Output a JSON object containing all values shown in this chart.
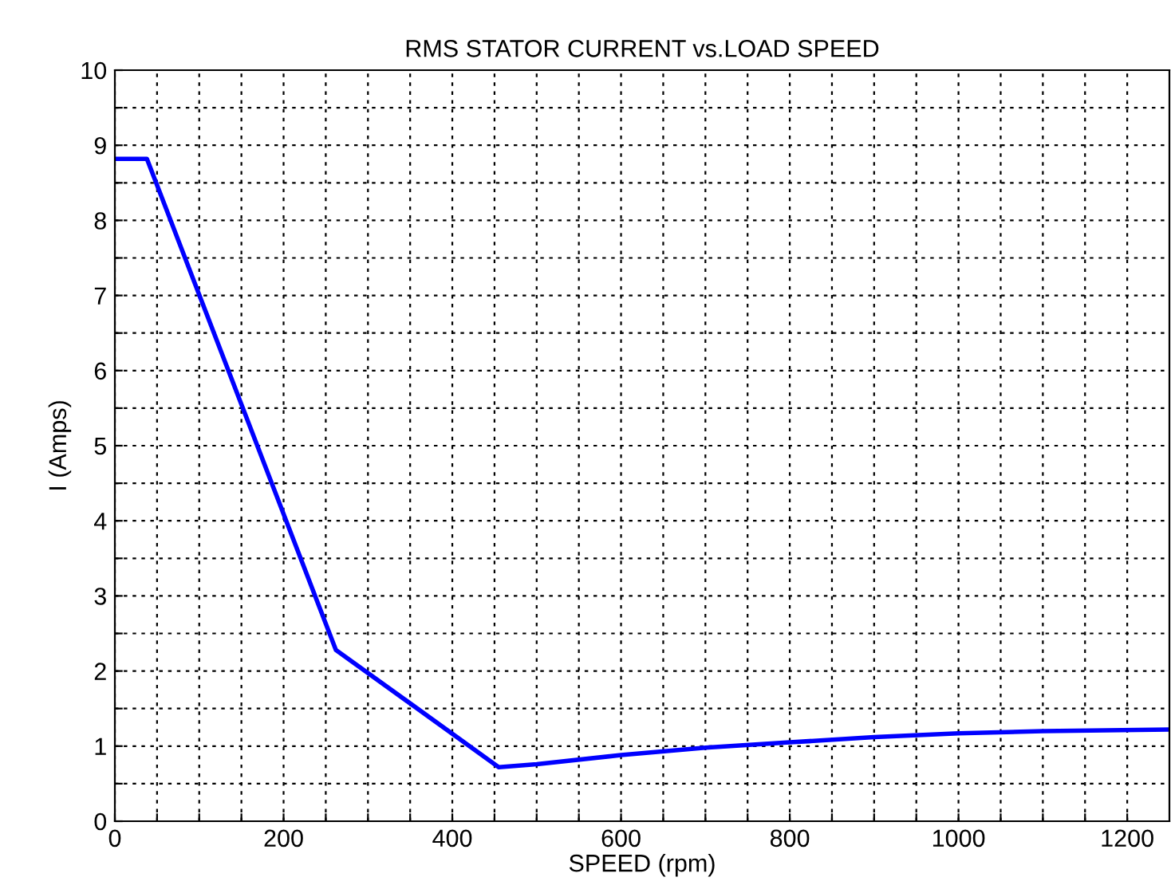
{
  "chart_data": {
    "type": "line",
    "title": "RMS STATOR CURRENT vs.LOAD SPEED",
    "xlabel": "SPEED (rpm)",
    "ylabel": "I (Amps)",
    "x": [
      0,
      38,
      262,
      455,
      500,
      600,
      700,
      800,
      900,
      1000,
      1100,
      1250
    ],
    "series": [
      {
        "color": "#0000ff",
        "values": [
          8.82,
          8.82,
          2.28,
          0.72,
          0.76,
          0.88,
          0.98,
          1.05,
          1.12,
          1.17,
          1.2,
          1.22
        ]
      }
    ],
    "xlim": [
      0,
      1250
    ],
    "xticks": [
      0,
      {
        "value": 50,
        "label": null
      },
      {
        "value": 100,
        "label": null
      },
      {
        "value": 150,
        "label": null
      },
      200,
      {
        "value": 250,
        "label": null
      },
      {
        "value": 300,
        "label": null
      },
      {
        "value": 350,
        "label": null
      },
      400,
      {
        "value": 450,
        "label": null
      },
      {
        "value": 500,
        "label": null
      },
      {
        "value": 550,
        "label": null
      },
      600,
      {
        "value": 650,
        "label": null
      },
      {
        "value": 700,
        "label": null
      },
      {
        "value": 750,
        "label": null
      },
      800,
      {
        "value": 850,
        "label": null
      },
      {
        "value": 900,
        "label": null
      },
      {
        "value": 950,
        "label": null
      },
      1000,
      {
        "value": 1050,
        "label": null
      },
      {
        "value": 1100,
        "label": null
      },
      {
        "value": 1150,
        "label": null
      },
      1200
    ],
    "ylim": [
      0,
      10
    ],
    "yticks": [
      0,
      {
        "value": 0.5,
        "label": null
      },
      1,
      {
        "value": 1.5,
        "label": null
      },
      2,
      {
        "value": 2.5,
        "label": null
      },
      3,
      {
        "value": 3.5,
        "label": null
      },
      4,
      {
        "value": 4.5,
        "label": null
      },
      5,
      {
        "value": 5.5,
        "label": null
      },
      6,
      {
        "value": 6.5,
        "label": null
      },
      7,
      {
        "value": 7.5,
        "label": null
      },
      8,
      {
        "value": 8.5,
        "label": null
      },
      9,
      {
        "value": 9.5,
        "label": null
      },
      10
    ],
    "grid": true,
    "line_style": "solid",
    "marker": "none"
  }
}
